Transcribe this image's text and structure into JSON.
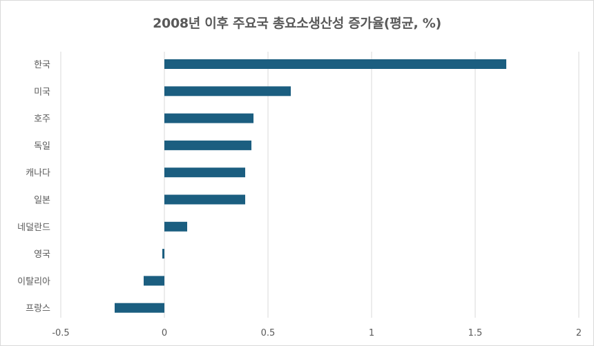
{
  "chart_data": {
    "type": "bar",
    "orientation": "horizontal",
    "title": "2008년 이후 주요국 총요소생산성 증가율(평균, %)",
    "categories": [
      "한국",
      "미국",
      "호주",
      "독일",
      "캐나다",
      "일본",
      "네덜란드",
      "영국",
      "이탈리아",
      "프랑스"
    ],
    "values": [
      1.65,
      0.61,
      0.43,
      0.42,
      0.39,
      0.39,
      0.11,
      -0.01,
      -0.1,
      -0.24
    ],
    "xlim": [
      -0.5,
      2
    ],
    "x_ticks": [
      -0.5,
      0,
      0.5,
      1,
      1.5,
      2
    ],
    "x_tick_labels": [
      "-0.5",
      "0",
      "0.5",
      "1",
      "1.5",
      "2"
    ],
    "grid": true,
    "legend": "none",
    "bar_color": "#1b5e80",
    "grid_color": "#d9d9d9"
  }
}
